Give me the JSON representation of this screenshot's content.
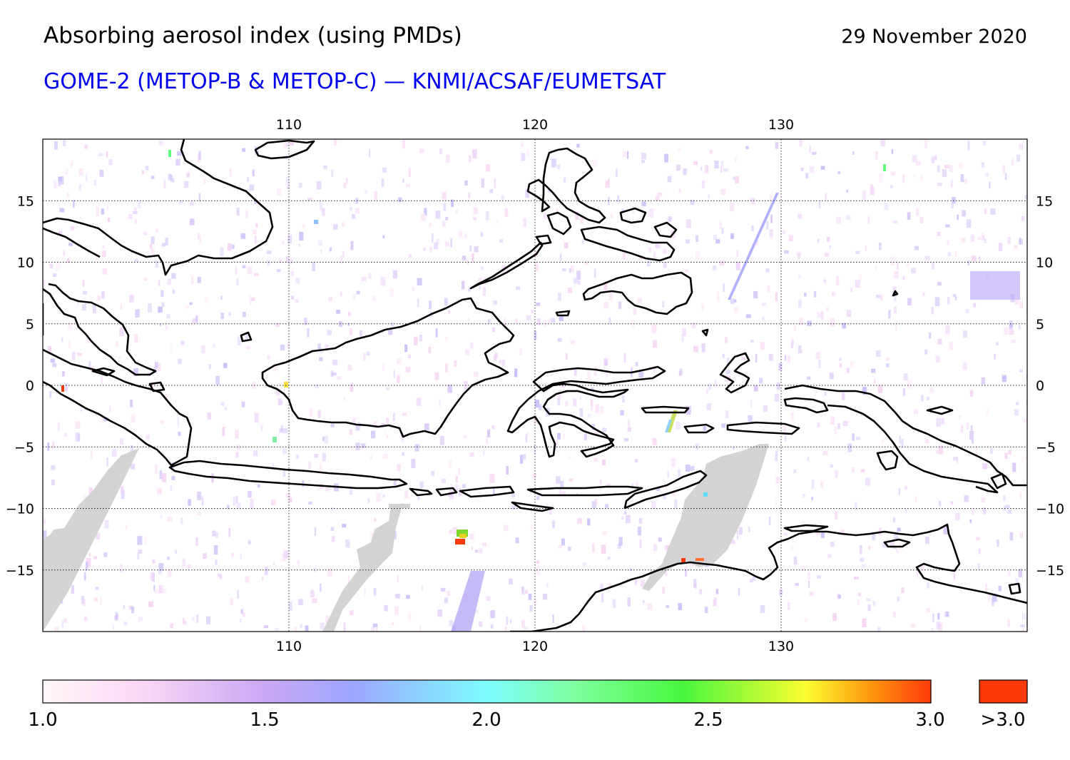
{
  "header": {
    "title": "Absorbing aerosol index (using PMDs)",
    "date": "29 November 2020",
    "subtitle": "GOME-2 (METOP-B & METOP-C) — KNMI/ACSAF/EUMETSAT"
  },
  "map": {
    "lon_range": [
      100,
      140
    ],
    "lat_range": [
      -20,
      20
    ],
    "lon_ticks": [
      110,
      120,
      130
    ],
    "lat_ticks": [
      15,
      10,
      5,
      0,
      -5,
      -10,
      -15
    ],
    "lon_tick_labels": [
      "110",
      "120",
      "130"
    ],
    "lat_tick_labels": [
      "15",
      "10",
      "5",
      "0",
      "−5",
      "−10",
      "−15"
    ],
    "grid": true,
    "missing_data_color": "#d3d3d3",
    "coastline_color": "#000000"
  },
  "colorbar": {
    "range": [
      1.0,
      3.0
    ],
    "tick_labels": [
      "1.0",
      "1.5",
      "2.0",
      "2.5",
      "3.0"
    ],
    "overflow_label": ">3.0",
    "overflow_color": "#ff3a0a",
    "colors": [
      "#fff8f8",
      "#fbd7f5",
      "#c9a8f3",
      "#9da6ff",
      "#7efcff",
      "#7fff9f",
      "#48f63f",
      "#fbfd30",
      "#ff9a10",
      "#ff3a0a"
    ]
  }
}
